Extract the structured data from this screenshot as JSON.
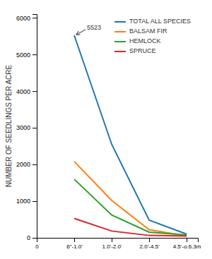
{
  "chart_data": {
    "type": "line",
    "ylabel": "NUMBER OF SEEDLINGS PER ACRE",
    "x": [
      1,
      2,
      3,
      4
    ],
    "series": [
      {
        "name": "TOTAL ALL SPECIES",
        "values": [
          5523,
          2550,
          480,
          100
        ]
      },
      {
        "name": "BALSAM FIR",
        "values": [
          2080,
          1020,
          220,
          55
        ]
      },
      {
        "name": "HEMLOCK",
        "values": [
          1600,
          620,
          155,
          75
        ]
      },
      {
        "name": "SPRUCE",
        "values": [
          530,
          185,
          65,
          50
        ]
      }
    ],
    "xlim": [
      0,
      4.3
    ],
    "xticks": [
      0,
      {
        "value": 1,
        "label": "6\"-1.0'"
      },
      {
        "value": 2,
        "label": "1.0'-2.0'"
      },
      {
        "value": 3,
        "label": "2.0'-4.5'"
      },
      {
        "value": 4,
        "label": "4.5'-o.6.3m"
      }
    ],
    "ylim": [
      0,
      6100
    ],
    "yticks": [
      0,
      1000,
      2000,
      3000,
      4000,
      5000,
      6000
    ],
    "grid": false,
    "legend": "upper right",
    "annotations": [
      {
        "text": "5523",
        "x": 1,
        "y": 5523
      }
    ]
  }
}
